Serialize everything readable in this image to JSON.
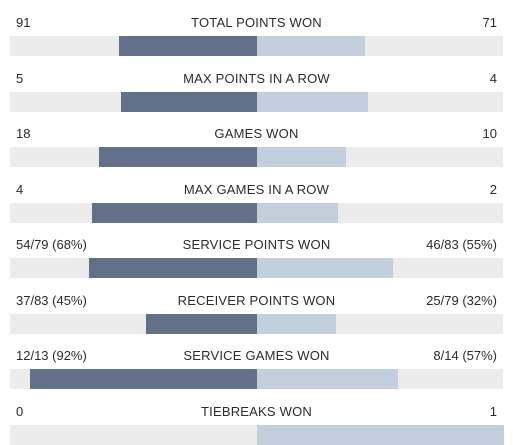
{
  "colors": {
    "player1_bar": "#637089",
    "player2_bar": "#c4cfde",
    "track": "#ececec"
  },
  "stats": [
    {
      "name": "TOTAL POINTS WON",
      "left": "91",
      "right": "71",
      "left_share": 0.56,
      "right_share": 0.44
    },
    {
      "name": "MAX POINTS IN A ROW",
      "left": "5",
      "right": "4",
      "left_share": 0.55,
      "right_share": 0.45
    },
    {
      "name": "GAMES WON",
      "left": "18",
      "right": "10",
      "left_share": 0.64,
      "right_share": 0.36
    },
    {
      "name": "MAX GAMES IN A ROW",
      "left": "4",
      "right": "2",
      "left_share": 0.67,
      "right_share": 0.33
    },
    {
      "name": "SERVICE POINTS WON",
      "left": "54/79 (68%)",
      "right": "46/83 (55%)",
      "left_share": 0.68,
      "right_share": 0.55
    },
    {
      "name": "RECEIVER POINTS WON",
      "left": "37/83 (45%)",
      "right": "25/79 (32%)",
      "left_share": 0.45,
      "right_share": 0.32
    },
    {
      "name": "SERVICE GAMES WON",
      "left": "12/13 (92%)",
      "right": "8/14 (57%)",
      "left_share": 0.92,
      "right_share": 0.57
    },
    {
      "name": "TIEBREAKS WON",
      "left": "0",
      "right": "1",
      "left_share": 0,
      "right_share": 1
    }
  ]
}
